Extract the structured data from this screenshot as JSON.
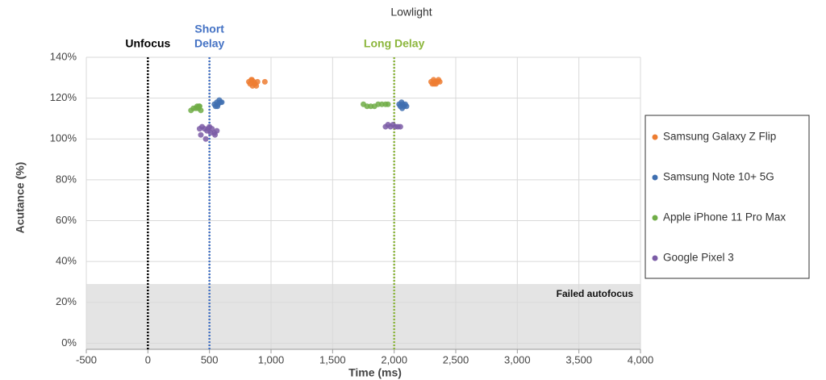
{
  "chart_data": {
    "type": "scatter",
    "title": "Lowlight",
    "x_label": "Time (ms)",
    "y_label": "Acutance (%)",
    "xlim": [
      -500,
      4000
    ],
    "ylim": [
      -3,
      140
    ],
    "xticks": [
      -500,
      0,
      500,
      {
        "value": 1000,
        "label": "1,000"
      },
      {
        "value": 1500,
        "label": "1,500"
      },
      {
        "value": 2000,
        "label": "2,000"
      },
      {
        "value": 2500,
        "label": "2,500"
      },
      {
        "value": 3000,
        "label": "3,000"
      },
      {
        "value": 3500,
        "label": "3,500"
      },
      {
        "value": 4000,
        "label": "4,000"
      }
    ],
    "yticks": [
      {
        "value": 0,
        "label": "0%"
      },
      {
        "value": 20,
        "label": "20%"
      },
      {
        "value": 40,
        "label": "40%"
      },
      {
        "value": 60,
        "label": "60%"
      },
      {
        "value": 80,
        "label": "80%"
      },
      {
        "value": 100,
        "label": "100%"
      },
      {
        "value": 120,
        "label": "120%"
      },
      {
        "value": 140,
        "label": "140%"
      }
    ],
    "grid": true,
    "legend": "right",
    "reference_lines": [
      {
        "value": 0,
        "label": [
          "Unfocus"
        ],
        "color": "#000000"
      },
      {
        "value": 500,
        "label": [
          "Short",
          "Delay"
        ],
        "color": "#4472c4"
      },
      {
        "value": 2000,
        "label": [
          "Long Delay"
        ],
        "color": "#8cb63c"
      }
    ],
    "band": {
      "to": 29,
      "label": "Failed autofocus",
      "color": "#e4e4e4"
    },
    "series": [
      {
        "name": "Samsung Galaxy Z Flip",
        "color": "#ed7d31",
        "x": [
          820,
          830,
          840,
          850,
          860,
          870,
          880,
          890,
          845,
          865,
          950,
          2300,
          2310,
          2320,
          2330,
          2340,
          2350,
          2360,
          2370,
          2325
        ],
        "values": [
          128,
          127,
          129,
          126,
          128,
          127,
          126,
          128,
          129,
          127,
          128,
          128,
          127,
          129,
          128,
          127,
          128,
          129,
          128,
          127
        ]
      },
      {
        "name": "Samsung Note 10+ 5G",
        "color": "#3f6fb0",
        "x": [
          540,
          550,
          560,
          570,
          580,
          590,
          600,
          565,
          2040,
          2050,
          2060,
          2070,
          2080,
          2090,
          2100,
          2065
        ],
        "values": [
          117,
          116,
          118,
          117,
          119,
          118,
          118,
          116,
          117,
          116,
          118,
          117,
          116,
          117,
          116,
          115
        ]
      },
      {
        "name": "Apple iPhone 11 Pro Max",
        "color": "#70ad47",
        "x": [
          350,
          370,
          390,
          400,
          410,
          420,
          430,
          415,
          1750,
          1780,
          1810,
          1840,
          1870,
          1900,
          1930,
          1950
        ],
        "values": [
          114,
          115,
          115,
          116,
          115,
          116,
          114,
          116,
          117,
          116,
          116,
          116,
          117,
          117,
          117,
          117
        ]
      },
      {
        "name": "Google Pixel 3",
        "color": "#7b5ca6",
        "x": [
          420,
          440,
          460,
          480,
          500,
          520,
          540,
          560,
          430,
          470,
          510,
          545,
          490,
          1930,
          1950,
          1970,
          1990,
          2010,
          2030,
          2050
        ],
        "values": [
          105,
          106,
          105,
          104,
          106,
          105,
          103,
          104,
          102,
          100,
          103,
          102,
          105,
          106,
          107,
          106,
          107,
          106,
          106,
          106
        ]
      }
    ]
  }
}
